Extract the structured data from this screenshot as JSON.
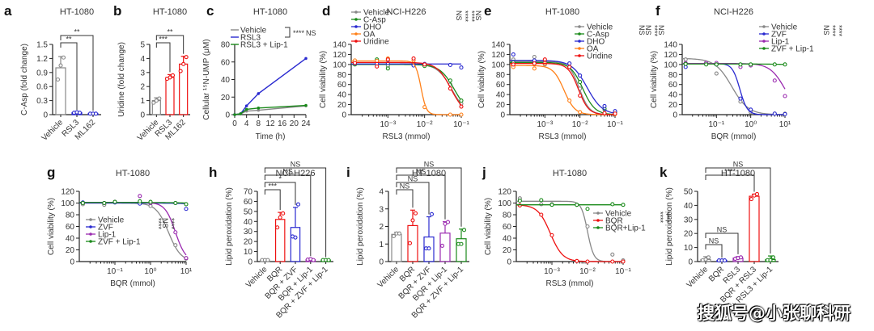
{
  "watermark": "搜狐号@小张聊科研",
  "chart_data": [
    {
      "id": "a",
      "type": "bar",
      "panel_label": "a",
      "title": "HT-1080",
      "ylabel": "C-Asp (fold change)",
      "ylim": [
        0,
        1.5
      ],
      "yticks": [
        0,
        0.3,
        0.6,
        0.9,
        1.2,
        1.5
      ],
      "categories": [
        "Vehicle",
        "RSL3",
        "ML162"
      ],
      "values": [
        1.0,
        0.04,
        0.02
      ],
      "errors": [
        0.24,
        0.01,
        0.01
      ],
      "points": [
        [
          0.75,
          1.05,
          1.22
        ],
        [
          0.04,
          0.05,
          0.04
        ],
        [
          0.02,
          0.02,
          0.02
        ]
      ],
      "colors": [
        "#888888",
        "#2a2ad0",
        "#2a2ad0"
      ],
      "significance": [
        {
          "from": 0,
          "to": 1,
          "label": "**"
        },
        {
          "from": 0,
          "to": 2,
          "label": "**"
        }
      ]
    },
    {
      "id": "b",
      "type": "bar",
      "panel_label": "b",
      "title": "HT-1080",
      "ylabel": "Uridine (fold change)",
      "ylim": [
        0,
        5
      ],
      "yticks": [
        0,
        1,
        2,
        3,
        4,
        5
      ],
      "categories": [
        "Vehicle",
        "RSL3",
        "ML162"
      ],
      "values": [
        1.0,
        2.65,
        3.6
      ],
      "errors": [
        0.2,
        0.2,
        0.55
      ],
      "points": [
        [
          0.85,
          1.0,
          1.15
        ],
        [
          2.55,
          2.65,
          2.8
        ],
        [
          3.1,
          3.6,
          4.1
        ]
      ],
      "colors": [
        "#888888",
        "#ee1111",
        "#ee1111"
      ],
      "significance": [
        {
          "from": 0,
          "to": 1,
          "label": "***"
        },
        {
          "from": 0,
          "to": 2,
          "label": "**"
        }
      ]
    },
    {
      "id": "c",
      "type": "line",
      "panel_label": "c",
      "title": "HT-1080",
      "ylabel": "Cellular ¹⁵N-UMP (μM)",
      "xlabel": "Time (h)",
      "xlim": [
        0,
        24
      ],
      "ylim": [
        0,
        80
      ],
      "xticks": [
        0,
        4,
        8,
        12,
        16,
        20,
        24
      ],
      "yticks": [
        0,
        20,
        40,
        60,
        80
      ],
      "series": [
        {
          "name": "Vehicle",
          "color": "#888888",
          "x": [
            0,
            2,
            4,
            8,
            24
          ],
          "y": [
            0,
            1,
            4,
            5,
            10
          ]
        },
        {
          "name": "RSL3",
          "color": "#2a2ad0",
          "x": [
            0,
            2,
            4,
            8,
            24
          ],
          "y": [
            0,
            1,
            10,
            24,
            64
          ]
        },
        {
          "name": "RSL3 + Lip-1",
          "color": "#1a8a1a",
          "x": [
            0,
            2,
            4,
            8,
            24
          ],
          "y": [
            0,
            1,
            6,
            7.5,
            10.5
          ]
        }
      ],
      "significance": [
        {
          "label": "****"
        },
        {
          "label": "NS"
        }
      ]
    },
    {
      "id": "d",
      "type": "line",
      "scale": "log",
      "panel_label": "d",
      "title": "NCI-H226",
      "ylabel": "Cell viability (%)",
      "xlabel": "RSL3 (mmol)",
      "ylim": [
        0,
        140
      ],
      "yticks": [
        0,
        20,
        40,
        60,
        80,
        100,
        120,
        140
      ],
      "xticks": [
        "10⁻³",
        "10⁻²",
        "10⁻¹"
      ],
      "series": [
        {
          "name": "Vehicle",
          "color": "#888888",
          "ic50": 0.055,
          "top": 101,
          "hill": 2.2,
          "pts": [
            101,
            104,
            97,
            103,
            98,
            60,
            22
          ]
        },
        {
          "name": "C-Asp",
          "color": "#1a8a1a",
          "ic50": 0.065,
          "top": 100,
          "hill": 2.2,
          "pts": [
            100,
            110,
            92,
            101,
            97,
            68,
            28
          ]
        },
        {
          "name": "DHO",
          "color": "#2a2ad0",
          "ic50": 5,
          "top": 101,
          "hill": 2,
          "pts": [
            102,
            102,
            103,
            98,
            101,
            99,
            94
          ]
        },
        {
          "name": "OA",
          "color": "#ff8018",
          "ic50": 0.008,
          "top": 107,
          "hill": 6,
          "pts": [
            108,
            107,
            112,
            108,
            15,
            0,
            0
          ]
        },
        {
          "name": "Uridine",
          "color": "#ee1111",
          "ic50": 0.052,
          "top": 104,
          "hill": 2.3,
          "pts": [
            103,
            96,
            110,
            112,
            100,
            52,
            16
          ]
        }
      ],
      "significance": [
        {
          "label": "NS"
        },
        {
          "label": "****"
        },
        {
          "label": "****"
        },
        {
          "label": "NS"
        }
      ]
    },
    {
      "id": "e",
      "type": "line",
      "scale": "log",
      "panel_label": "e",
      "title": "HT-1080",
      "ylabel": "Cell viability (%)",
      "xlabel": "RSL3 (mmol)",
      "ylim": [
        0,
        140
      ],
      "yticks": [
        0,
        20,
        40,
        60,
        80,
        100,
        120,
        140
      ],
      "xticks": [
        "10⁻³",
        "10⁻²",
        "10⁻¹"
      ],
      "series": [
        {
          "name": "Vehicle",
          "color": "#888888",
          "ic50": 0.0095,
          "top": 106,
          "hill": 3,
          "pts": [
            110,
            115,
            100,
            102,
            52,
            10,
            5
          ]
        },
        {
          "name": "C-Asp",
          "color": "#1a8a1a",
          "ic50": 0.012,
          "top": 104,
          "hill": 2.5,
          "pts": [
            104,
            102,
            103,
            95,
            65,
            12,
            5
          ]
        },
        {
          "name": "DHO",
          "color": "#2a2ad0",
          "ic50": 0.016,
          "top": 108,
          "hill": 2,
          "pts": [
            120,
            108,
            104,
            102,
            78,
            17,
            7
          ]
        },
        {
          "name": "OA",
          "color": "#ff8018",
          "ic50": 0.0035,
          "top": 98,
          "hill": 2.8,
          "pts": [
            95,
            92,
            102,
            28,
            5,
            2,
            1
          ]
        },
        {
          "name": "Uridine",
          "color": "#ee1111",
          "ic50": 0.009,
          "top": 102,
          "hill": 3,
          "pts": [
            100,
            102,
            110,
            95,
            38,
            3,
            2
          ]
        }
      ],
      "significance": [
        {
          "label": "NS"
        },
        {
          "label": "NS"
        },
        {
          "label": "****"
        },
        {
          "label": "NS"
        }
      ]
    },
    {
      "id": "f",
      "type": "line",
      "scale": "log",
      "panel_label": "f",
      "title": "NCI-H226",
      "ylabel": "Cell viability (%)",
      "xlabel": "BQR (mmol)",
      "ylim": [
        0,
        140
      ],
      "yticks": [
        0,
        20,
        40,
        60,
        80,
        100,
        120,
        140
      ],
      "xticks": [
        "10⁻¹",
        "10⁰",
        "10¹"
      ],
      "series": [
        {
          "name": "Vehicle",
          "color": "#888888",
          "ic50": 0.28,
          "top": 112,
          "hill": 1.8,
          "pts": [
            110,
            104,
            82,
            26,
            5,
            2,
            2
          ]
        },
        {
          "name": "ZVF",
          "color": "#2a2ad0",
          "ic50": 0.48,
          "top": 102,
          "hill": 4,
          "pts": [
            95,
            102,
            100,
            32,
            10,
            2,
            1
          ]
        },
        {
          "name": "Lip-1",
          "color": "#9b2bb0",
          "ic50": 10,
          "top": 102,
          "hill": 2,
          "pts": [
            103,
            103,
            103,
            95,
            98,
            68,
            37
          ]
        },
        {
          "name": "ZVF + Lip-1",
          "color": "#1a8a1a",
          "ic50": 1000,
          "top": 101,
          "hill": 1,
          "pts": [
            101,
            100,
            100,
            100,
            100,
            100,
            100
          ]
        }
      ],
      "significance": [
        {
          "label": "NS"
        },
        {
          "label": "****"
        },
        {
          "label": "****"
        }
      ]
    },
    {
      "id": "g",
      "type": "line",
      "scale": "log",
      "panel_label": "g",
      "title": "HT-1080",
      "ylabel": "Cell viability (%)",
      "xlabel": "BQR (mmol)",
      "ylim": [
        0,
        120
      ],
      "yticks": [
        0,
        20,
        40,
        60,
        80,
        100,
        120
      ],
      "xticks": [
        "10⁻¹",
        "10⁰",
        "10¹"
      ],
      "series": [
        {
          "name": "Vehicle",
          "color": "#888888",
          "ic50": 3.2,
          "top": 100,
          "hill": 2.5,
          "pts": [
            98,
            97,
            102,
            100,
            95,
            28,
            5
          ]
        },
        {
          "name": "ZVF",
          "color": "#2a2ad0",
          "ic50": 1000,
          "top": 100,
          "hill": 1,
          "pts": [
            101,
            100,
            101,
            99,
            100,
            100,
            90
          ]
        },
        {
          "name": "Lip-1",
          "color": "#9b2bb0",
          "ic50": 5,
          "top": 101,
          "hill": 3,
          "pts": [
            100,
            100,
            102,
            112,
            100,
            50,
            6
          ]
        },
        {
          "name": "ZVF + Lip-1",
          "color": "#1a8a1a",
          "ic50": 1000,
          "top": 101,
          "hill": 1,
          "pts": [
            100,
            100,
            102,
            103,
            102,
            100,
            98
          ]
        }
      ],
      "significance": [
        {
          "label": "****"
        },
        {
          "label": "NS"
        },
        {
          "label": "****"
        }
      ]
    },
    {
      "id": "h",
      "type": "bar",
      "panel_label": "h",
      "title": "NCI-H226",
      "ylabel": "Lipid peroxidation (%)",
      "ylim": [
        0,
        70
      ],
      "yticks": [
        0,
        10,
        20,
        30,
        40,
        50,
        60,
        70
      ],
      "categories": [
        "Vehicle",
        "BQR",
        "BQR + ZVF",
        "BQR + Lip-1",
        "BQR + ZVF + Lip-1"
      ],
      "values": [
        1.5,
        42,
        34,
        2,
        1.5
      ],
      "errors": [
        0.5,
        7,
        20,
        1,
        0.5
      ],
      "points": [
        [
          1.5,
          1.5,
          1.5
        ],
        [
          34,
          44,
          48
        ],
        [
          25,
          24,
          57
        ],
        [
          2,
          2.5,
          1.5
        ],
        [
          1.5,
          1.5,
          1.5
        ]
      ],
      "colors": [
        "#888888",
        "#ee1111",
        "#2a2ad0",
        "#9b2bb0",
        "#1a8a1a"
      ],
      "significance": [
        {
          "from": 0,
          "to": 1,
          "label": "***"
        },
        {
          "from": 0,
          "to": 2,
          "label": "*"
        },
        {
          "from": 0,
          "to": 3,
          "label": "NS"
        },
        {
          "from": 0,
          "to": 4,
          "label": "NS"
        }
      ]
    },
    {
      "id": "i",
      "type": "bar",
      "panel_label": "i",
      "title": "HT-1080",
      "ylabel": "Lipid peroxidation (%)",
      "ylim": [
        0,
        4
      ],
      "yticks": [
        0,
        1,
        2,
        3,
        4
      ],
      "categories": [
        "Vehicle",
        "BQR",
        "BQR + ZVF",
        "BQR + Lip-1",
        "BQR + ZVF + Lip-1"
      ],
      "values": [
        1.55,
        2.05,
        1.4,
        1.62,
        1.3
      ],
      "errors": [
        0.12,
        0.88,
        1.15,
        0.65,
        0.55
      ],
      "points": [
        [
          1.45,
          1.6,
          1.6
        ],
        [
          1.05,
          2.35,
          2.75
        ],
        [
          0.75,
          0.75,
          2.7
        ],
        [
          0.9,
          2.15,
          2.25
        ],
        [
          1.0,
          1.0,
          1.8
        ]
      ],
      "colors": [
        "#888888",
        "#ee1111",
        "#2a2ad0",
        "#9b2bb0",
        "#1a8a1a"
      ],
      "significance": [
        {
          "from": 0,
          "to": 1,
          "label": "NS"
        },
        {
          "from": 0,
          "to": 2,
          "label": "NS"
        },
        {
          "from": 0,
          "to": 3,
          "label": "NS"
        },
        {
          "from": 0,
          "to": 4,
          "label": "NS"
        }
      ]
    },
    {
      "id": "j",
      "type": "line",
      "scale": "log",
      "panel_label": "j",
      "title": "HT-1080",
      "ylabel": "Cell viability (%)",
      "xlabel": "RSL3 (mmol)",
      "ylim": [
        0,
        120
      ],
      "yticks": [
        0,
        20,
        40,
        60,
        80,
        100,
        120
      ],
      "xticks": [
        "10⁻³",
        "10⁻²",
        "10⁻¹"
      ],
      "series": [
        {
          "name": "Vehicle",
          "color": "#888888",
          "ic50": 0.01,
          "top": 103,
          "hill": 5,
          "pts": [
            108,
            98,
            98,
            97,
            60,
            12,
            2
          ]
        },
        {
          "name": "BQR",
          "color": "#ee1111",
          "ic50": 0.0009,
          "top": 97,
          "hill": 2.5,
          "pts": [
            96,
            80,
            45,
            1,
            0,
            0,
            0
          ]
        },
        {
          "name": "BQR+Lip-1",
          "color": "#1a8a1a",
          "ic50": 1000,
          "top": 97,
          "hill": 1,
          "pts": [
            104,
            105,
            97,
            97,
            90,
            98,
            97
          ]
        }
      ],
      "significance": [
        {
          "label": "****"
        },
        {
          "label": "****"
        }
      ]
    },
    {
      "id": "k",
      "type": "bar",
      "panel_label": "k",
      "title": "HT-1080",
      "ylabel": "Lipid peroxidation (%)",
      "ylim": [
        0,
        50
      ],
      "yticks": [
        0,
        10,
        20,
        30,
        40,
        50
      ],
      "categories": [
        "Vehicle",
        "BQR",
        "RSL3",
        "BQR + RSL3",
        "BQR + RSL3 + Lip-1"
      ],
      "values": [
        1.5,
        0.8,
        2.5,
        46.5,
        1.5
      ],
      "errors": [
        2,
        0.3,
        1,
        1.5,
        2.5
      ],
      "points": [
        [
          1,
          1.5,
          3
        ],
        [
          0.8,
          0.8,
          0.8
        ],
        [
          2,
          2.5,
          3
        ],
        [
          44.5,
          47,
          48
        ],
        [
          1,
          1,
          3
        ]
      ],
      "colors": [
        "#888888",
        "#2a2ad0",
        "#9b2bb0",
        "#ee1111",
        "#1a8a1a"
      ],
      "significance": [
        {
          "from": 0,
          "to": 1,
          "label": "NS"
        },
        {
          "from": 0,
          "to": 2,
          "label": "NS"
        },
        {
          "from": 0,
          "to": 3,
          "label": "****"
        },
        {
          "from": 0,
          "to": 4,
          "label": "NS"
        }
      ]
    }
  ]
}
